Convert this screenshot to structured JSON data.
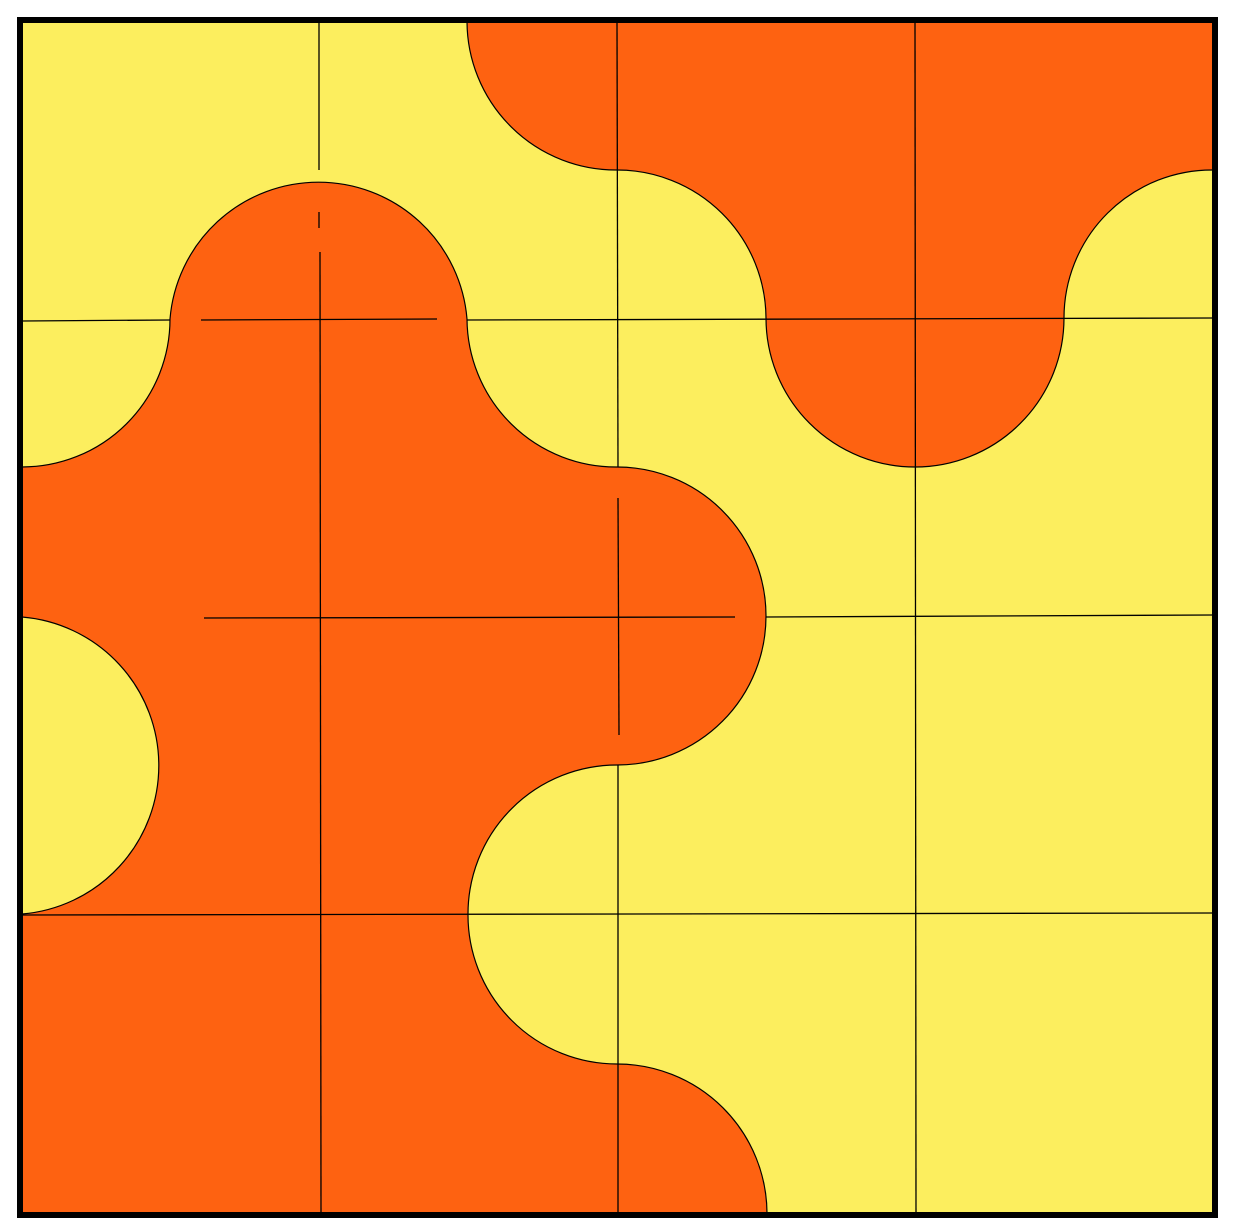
{
  "puzzle": {
    "grid_rows": 4,
    "grid_cols": 4,
    "colors": {
      "yellow": "#FCEE5E",
      "orange": "#FE6211",
      "line": "#000000",
      "background": "#FFFFFF"
    },
    "orange_region_cells": [
      [
        0,
        2
      ],
      [
        0,
        3
      ],
      [
        1,
        0
      ],
      [
        1,
        1
      ],
      [
        2,
        0
      ],
      [
        2,
        1
      ],
      [
        2,
        2
      ],
      [
        3,
        0
      ],
      [
        3,
        1
      ]
    ],
    "tiles": [
      {
        "row": 0,
        "col": 0
      },
      {
        "row": 0,
        "col": 1
      },
      {
        "row": 0,
        "col": 2
      },
      {
        "row": 0,
        "col": 3
      },
      {
        "row": 1,
        "col": 0
      },
      {
        "row": 1,
        "col": 1
      },
      {
        "row": 1,
        "col": 2
      },
      {
        "row": 1,
        "col": 3
      },
      {
        "row": 2,
        "col": 0
      },
      {
        "row": 2,
        "col": 1
      },
      {
        "row": 2,
        "col": 2
      },
      {
        "row": 2,
        "col": 3
      },
      {
        "row": 3,
        "col": 0
      },
      {
        "row": 3,
        "col": 1
      },
      {
        "row": 3,
        "col": 2
      },
      {
        "row": 3,
        "col": 3
      }
    ]
  }
}
